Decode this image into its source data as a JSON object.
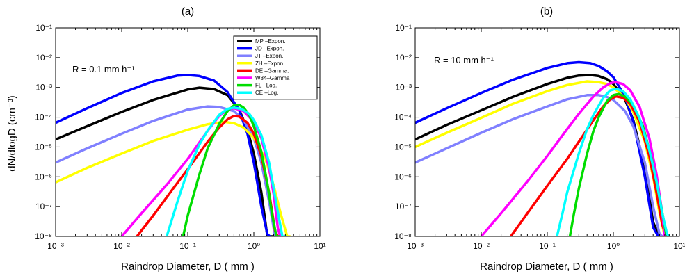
{
  "chart_data": [
    {
      "type": "line",
      "title": "(a)",
      "xlabel": "Raindrop Diameter, D ( mm )",
      "ylabel": "dN/dlogD (cm⁻³)",
      "annotation": "R = 0.1 mm h⁻¹",
      "x_scale": "log",
      "y_scale": "log",
      "xlim": [
        0.001,
        10
      ],
      "ylim": [
        1e-08,
        0.1
      ],
      "x_ticks": [
        "10⁻³",
        "10⁻²",
        "10⁻¹",
        "10⁰",
        "10¹"
      ],
      "y_ticks": [
        "10⁻⁸",
        "10⁻⁷",
        "10⁻⁶",
        "10⁻⁵",
        "10⁻⁴",
        "10⁻³",
        "10⁻²",
        "10⁻¹"
      ],
      "grid": false,
      "legend_position": "top-right",
      "series": [
        {
          "name": "MP –Expon.",
          "color": "#000000",
          "x": [
            0.001,
            0.003,
            0.01,
            0.03,
            0.1,
            0.15,
            0.25,
            0.4,
            0.6,
            0.8,
            1.0,
            1.3,
            1.6,
            2.0
          ],
          "y": [
            1.8e-05,
            5e-05,
            0.00015,
            0.00038,
            0.00085,
            0.00098,
            0.00088,
            0.00055,
            0.00018,
            3.8e-05,
            6e-06,
            3e-07,
            1e-08,
            1e-08
          ]
        },
        {
          "name": "JD –Expon.",
          "color": "#0000ff",
          "x": [
            0.001,
            0.003,
            0.01,
            0.03,
            0.07,
            0.1,
            0.15,
            0.25,
            0.4,
            0.6,
            0.8,
            1.0,
            1.3,
            1.6,
            1.75
          ],
          "y": [
            6.5e-05,
            0.0002,
            0.00065,
            0.0016,
            0.0025,
            0.0026,
            0.0024,
            0.0017,
            0.0007,
            0.00017,
            2.8e-05,
            3e-06,
            1e-07,
            1.2e-08,
            1e-08
          ]
        },
        {
          "name": "JT –Expon.",
          "color": "#8080ff",
          "x": [
            0.001,
            0.003,
            0.01,
            0.03,
            0.1,
            0.2,
            0.3,
            0.5,
            0.7,
            1.0,
            1.3,
            1.7,
            2.1,
            2.4
          ],
          "y": [
            3e-06,
            9e-06,
            2.8e-05,
            7.5e-05,
            0.00018,
            0.00023,
            0.00022,
            0.00016,
            8e-05,
            2e-05,
            3e-06,
            1.5e-07,
            1e-08,
            1e-08
          ]
        },
        {
          "name": "ZH –Expon.",
          "color": "#ffff00",
          "x": [
            0.001,
            0.003,
            0.01,
            0.03,
            0.1,
            0.2,
            0.35,
            0.5,
            0.7,
            1.0,
            1.5,
            2.0,
            2.6,
            3.2,
            3.5
          ],
          "y": [
            6.5e-07,
            2e-06,
            6e-06,
            1.6e-05,
            3.8e-05,
            5.8e-05,
            7e-05,
            6.3e-05,
            4.5e-05,
            2e-05,
            4e-06,
            5e-07,
            5e-08,
            1e-08,
            1e-08
          ]
        },
        {
          "name": "DE –Gamma.",
          "color": "#ff0000",
          "x": [
            0.017,
            0.03,
            0.06,
            0.1,
            0.2,
            0.3,
            0.4,
            0.5,
            0.6,
            0.8,
            1.0,
            1.3,
            1.7,
            2.1,
            2.3
          ],
          "y": [
            1e-08,
            5e-08,
            4e-07,
            1.8e-06,
            1.5e-05,
            4.5e-05,
            8.5e-05,
            0.00011,
            0.000105,
            6.5e-05,
            2.8e-05,
            5e-06,
            3e-07,
            1.5e-08,
            1e-08
          ]
        },
        {
          "name": "W84–Gamma",
          "color": "#ff00ff",
          "x": [
            0.01,
            0.02,
            0.05,
            0.1,
            0.2,
            0.3,
            0.4,
            0.5,
            0.7,
            1.0,
            1.3,
            1.7,
            2.0,
            2.3,
            2.5
          ],
          "y": [
            1e-08,
            6e-08,
            6e-07,
            4e-06,
            3.5e-05,
            0.00011,
            0.00018,
            0.0002,
            0.00016,
            7e-05,
            2e-05,
            2e-06,
            2.5e-07,
            2e-08,
            1e-08
          ]
        },
        {
          "name": "FL –Log.",
          "color": "#00dd00",
          "x": [
            0.085,
            0.1,
            0.15,
            0.2,
            0.3,
            0.4,
            0.5,
            0.6,
            0.7,
            0.85,
            1.0,
            1.3,
            1.6,
            1.9,
            2.2,
            2.4
          ],
          "y": [
            1e-08,
            5e-08,
            1.2e-06,
            9e-06,
            6e-05,
            0.00016,
            0.00025,
            0.00026,
            0.00021,
            0.00012,
            5e-05,
            7e-06,
            6e-07,
            5e-08,
            1e-08,
            1e-08
          ]
        },
        {
          "name": "CE –Log.",
          "color": "#00ffff",
          "x": [
            0.048,
            0.07,
            0.1,
            0.15,
            0.2,
            0.3,
            0.4,
            0.5,
            0.65,
            0.85,
            1.0,
            1.3,
            1.7,
            2.2,
            2.7,
            3.0
          ],
          "y": [
            1e-08,
            1.5e-07,
            1.6e-06,
            1.2e-05,
            3.6e-05,
            0.00012,
            0.00019,
            0.00021,
            0.00019,
            0.00013,
            8e-05,
            2.5e-05,
            3e-06,
            1.2e-07,
            1e-08,
            1e-08
          ]
        }
      ]
    },
    {
      "type": "line",
      "title": "(b)",
      "xlabel": "Raindrop Diameter, D ( mm )",
      "ylabel": "",
      "annotation": "R = 10 mm h⁻¹",
      "x_scale": "log",
      "y_scale": "log",
      "xlim": [
        0.001,
        10
      ],
      "ylim": [
        1e-08,
        0.1
      ],
      "x_ticks": [
        "10⁻³",
        "10⁻²",
        "10⁻¹",
        "10⁰",
        "10¹"
      ],
      "y_ticks": [
        "10⁻⁸",
        "10⁻⁷",
        "10⁻⁶",
        "10⁻⁵",
        "10⁻⁴",
        "10⁻³",
        "10⁻²",
        "10⁻¹"
      ],
      "grid": false,
      "series": [
        {
          "name": "MP –Expon.",
          "color": "#000000",
          "x": [
            0.001,
            0.003,
            0.01,
            0.03,
            0.1,
            0.2,
            0.3,
            0.45,
            0.6,
            0.8,
            1.0,
            1.5,
            2.0,
            3.0,
            4.0,
            5.0,
            5.6
          ],
          "y": [
            1.8e-05,
            5.5e-05,
            0.00017,
            0.00048,
            0.0013,
            0.0021,
            0.0025,
            0.0026,
            0.0024,
            0.0019,
            0.0013,
            0.0004,
            8e-05,
            2e-06,
            3e-08,
            1e-08,
            1e-08
          ]
        },
        {
          "name": "JD –Expon.",
          "color": "#0000ff",
          "x": [
            0.001,
            0.003,
            0.01,
            0.03,
            0.1,
            0.2,
            0.3,
            0.45,
            0.6,
            0.8,
            1.0,
            1.5,
            2.0,
            3.0,
            4.0,
            4.8,
            5.2
          ],
          "y": [
            6.5e-05,
            0.0002,
            0.00065,
            0.0018,
            0.0045,
            0.0065,
            0.007,
            0.0065,
            0.0052,
            0.0035,
            0.0022,
            0.0005,
            7e-05,
            1e-06,
            2e-08,
            1e-08,
            1e-08
          ]
        },
        {
          "name": "JT –Expon.",
          "color": "#8080ff",
          "x": [
            0.001,
            0.003,
            0.01,
            0.03,
            0.1,
            0.2,
            0.4,
            0.6,
            0.8,
            1.0,
            1.5,
            2.0,
            3.0,
            4.0,
            5.0,
            5.5
          ],
          "y": [
            3e-06,
            9e-06,
            3e-05,
            8.5e-05,
            0.00023,
            0.0004,
            0.00055,
            0.00055,
            0.00048,
            0.00038,
            0.00016,
            5e-05,
            3e-06,
            1e-07,
            1.2e-08,
            1e-08
          ]
        },
        {
          "name": "ZH –Expon.",
          "color": "#ffff00",
          "x": [
            0.001,
            0.003,
            0.01,
            0.03,
            0.1,
            0.2,
            0.4,
            0.6,
            0.8,
            1.0,
            1.5,
            2.0,
            3.0,
            4.0,
            5.0,
            6.0,
            6.5
          ],
          "y": [
            1e-05,
            3e-05,
            9.5e-05,
            0.00028,
            0.00075,
            0.0012,
            0.0016,
            0.0015,
            0.0013,
            0.001,
            0.00045,
            0.00015,
            1.5e-05,
            1e-06,
            6e-08,
            1e-08,
            1e-08
          ]
        },
        {
          "name": "DE –Gamma.",
          "color": "#ff0000",
          "x": [
            0.028,
            0.05,
            0.1,
            0.2,
            0.3,
            0.5,
            0.7,
            0.9,
            1.1,
            1.4,
            1.8,
            2.5,
            3.5,
            4.5,
            5.5,
            6.3
          ],
          "y": [
            1e-08,
            6e-08,
            5e-07,
            4e-06,
            1.5e-05,
            8e-05,
            0.00023,
            0.0004,
            0.0005,
            0.00045,
            0.00028,
            7e-05,
            5e-06,
            3e-07,
            2.5e-08,
            1e-08
          ]
        },
        {
          "name": "W84–Gamma",
          "color": "#ff00ff",
          "x": [
            0.01,
            0.02,
            0.05,
            0.1,
            0.2,
            0.3,
            0.5,
            0.7,
            0.9,
            1.1,
            1.4,
            1.8,
            2.5,
            3.5,
            4.5,
            5.5,
            6.0
          ],
          "y": [
            1e-08,
            6e-08,
            7e-07,
            5e-06,
            4e-05,
            0.00013,
            0.0005,
            0.001,
            0.0014,
            0.0015,
            0.0013,
            0.0008,
            0.00022,
            2e-05,
            1.2e-06,
            6e-08,
            1e-08
          ]
        },
        {
          "name": "FL –Log.",
          "color": "#00dd00",
          "x": [
            0.22,
            0.25,
            0.3,
            0.4,
            0.5,
            0.6,
            0.8,
            1.0,
            1.2,
            1.5,
            2.0,
            2.8,
            3.8,
            5.0,
            6.3,
            7.0
          ],
          "y": [
            1e-08,
            5e-08,
            4e-07,
            6e-06,
            3.5e-05,
            0.0001,
            0.00035,
            0.00055,
            0.0006,
            0.0005,
            0.00025,
            5e-05,
            4e-06,
            2e-07,
            1.2e-08,
            1e-08
          ]
        },
        {
          "name": "CE –Log.",
          "color": "#00ffff",
          "x": [
            0.14,
            0.17,
            0.2,
            0.3,
            0.4,
            0.5,
            0.7,
            0.9,
            1.1,
            1.4,
            1.8,
            2.5,
            3.5,
            4.5,
            5.5,
            6.5,
            7.0
          ],
          "y": [
            1e-08,
            6e-08,
            3e-07,
            6e-06,
            4e-05,
            0.00012,
            0.00045,
            0.0008,
            0.0009,
            0.00075,
            0.0004,
            9e-05,
            8e-06,
            7e-07,
            6e-08,
            1.2e-08,
            1e-08
          ]
        }
      ]
    }
  ]
}
